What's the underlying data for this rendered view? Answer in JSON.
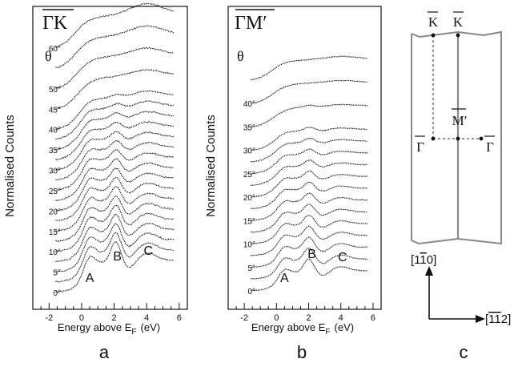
{
  "figure": {
    "panel_letters": [
      "a",
      "b",
      "c"
    ]
  },
  "chart_data": [
    {
      "type": "line",
      "panel": "a",
      "direction_label": "ΓK",
      "theta_symbol": "θ",
      "xlabel": "Energy above E",
      "xlabel_sub": "F",
      "xlabel_unit": "(eV)",
      "ylabel": "Normalised Counts",
      "xlim": [
        -3,
        6.5
      ],
      "xticks": [
        -2,
        0,
        2,
        4,
        6
      ],
      "xtick_labels": [
        "-2",
        "0",
        "2",
        "4",
        "6"
      ],
      "peak_labels": [
        {
          "text": "A",
          "energy": 0.5
        },
        {
          "text": "B",
          "energy": 2.2
        },
        {
          "text": "C",
          "energy": 4.1
        }
      ],
      "angle_labels": [
        "0°",
        "5°",
        "10°",
        "15°",
        "20°",
        "25°",
        "30°",
        "35°",
        "40°",
        "45°",
        "50°",
        "60°"
      ],
      "angles": [
        0,
        2.5,
        5,
        7.5,
        10,
        12.5,
        15,
        17.5,
        20,
        22.5,
        25,
        27.5,
        30,
        32.5,
        35,
        37.5,
        40,
        45,
        50,
        55,
        60
      ],
      "energy_range": [
        -1.6,
        5.7
      ],
      "series_shape": {
        "A": {
          "center": 0.45,
          "width": 0.35,
          "amplitude": 0.5,
          "fades_by_deg": 45
        },
        "B": {
          "center": 2.1,
          "width": 0.3,
          "amplitude": 0.6,
          "fades_by_deg": 45
        },
        "C": {
          "center": 4.1,
          "width": 0.5,
          "amplitude": 0.22,
          "fades_by_deg": 45
        },
        "onset_center": [
          0.3,
          -0.4
        ],
        "plateau_level": 1.0,
        "high_angle_broad_peak": {
          "center": 4.0,
          "amplitude": 0.35
        }
      }
    },
    {
      "type": "line",
      "panel": "b",
      "direction_label": "ΓM′",
      "theta_symbol": "θ",
      "xlabel": "Energy above E",
      "xlabel_sub": "F",
      "xlabel_unit": "(eV)",
      "ylabel": "Normalised Counts",
      "xlim": [
        -3,
        6.5
      ],
      "xticks": [
        -2,
        0,
        2,
        4,
        6
      ],
      "xtick_labels": [
        "-2",
        "0",
        "2",
        "4",
        "6"
      ],
      "peak_labels": [
        {
          "text": "A",
          "energy": 0.5
        },
        {
          "text": "B",
          "energy": 2.2
        },
        {
          "text": "C",
          "energy": 4.1
        }
      ],
      "angle_labels": [
        "0°",
        "5°",
        "10°",
        "15°",
        "20°",
        "25°",
        "30°",
        "35°",
        "40°"
      ],
      "angles": [
        0,
        2.5,
        5,
        7.5,
        10,
        12.5,
        15,
        17.5,
        20,
        22.5,
        25,
        27.5,
        30,
        35,
        40,
        45
      ],
      "energy_range": [
        -1.6,
        5.7
      ],
      "series_shape": {
        "A": {
          "center": 0.45,
          "width": 0.35,
          "amplitude": 0.45,
          "fades_by_deg": 35
        },
        "B": {
          "center": 2.0,
          "width": 0.3,
          "amplitude": 0.6,
          "fades_by_deg": 40
        },
        "C": {
          "center": 4.0,
          "width": 0.5,
          "amplitude": 0.2,
          "fades_by_deg": 35
        },
        "onset_center": [
          0.3,
          -0.3
        ],
        "plateau_level": 1.0,
        "high_angle_broad_peak": {
          "center": 4.0,
          "amplitude": 0.15
        }
      }
    },
    {
      "type": "diagram",
      "panel": "c",
      "labels": {
        "K_outer": "K",
        "K_inner": "K",
        "M_prime": "M′",
        "Gamma_left": "Γ",
        "Gamma_right": "Γ",
        "direction_up": "[1",
        "direction_up_bar": "1",
        "direction_up_end": "0]",
        "direction_right": "[",
        "direction_right_bar": "11",
        "direction_right_end": "2]"
      }
    }
  ]
}
